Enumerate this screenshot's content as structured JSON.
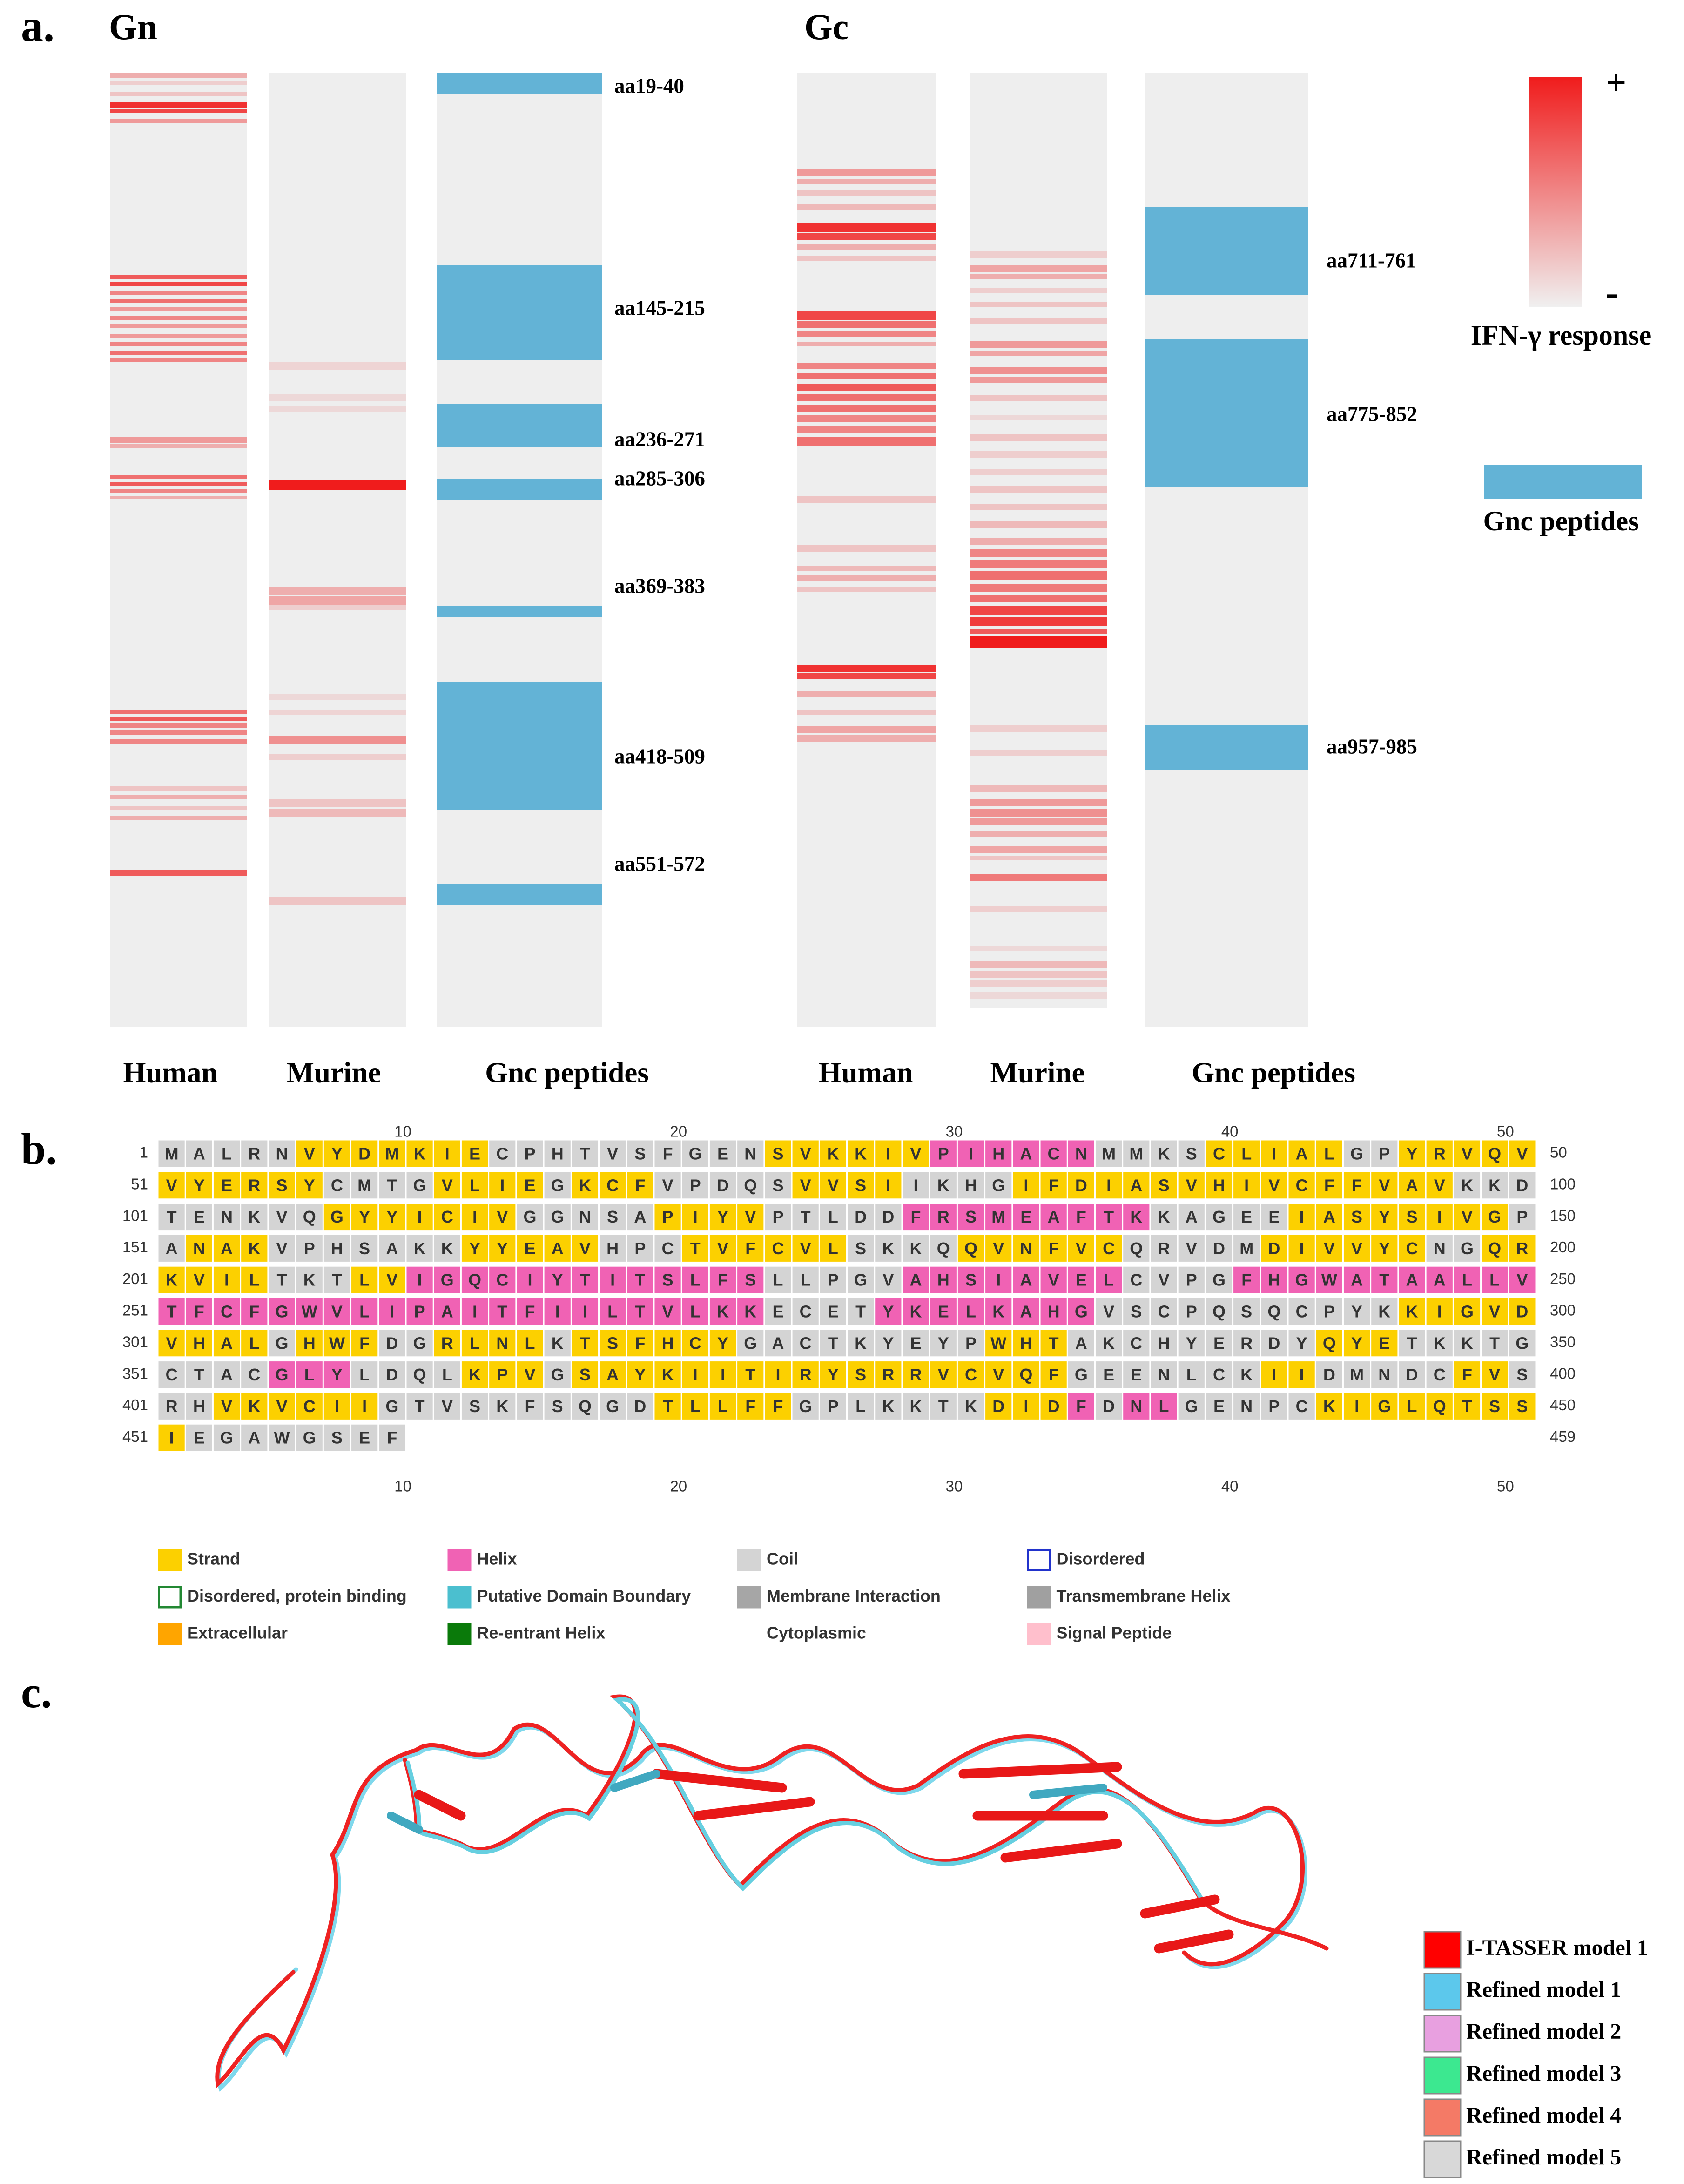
{
  "panel_a": {
    "label": "a.",
    "gn": {
      "title": "Gn",
      "columns": [
        "Human",
        "Murine",
        "Gnc peptides"
      ],
      "peptides": [
        "aa19-40",
        "aa145-215",
        "aa236-271",
        "aa285-306",
        "aa369-383",
        "aa418-509",
        "aa551-572"
      ]
    },
    "gc": {
      "title": "Gc",
      "columns": [
        "Human",
        "Murine",
        "Gnc peptides"
      ],
      "peptides": [
        "aa711-761",
        "aa775-852",
        "aa957-985"
      ]
    },
    "legend": {
      "plus": "+",
      "minus": "-",
      "response": "IFN-γ response",
      "peptides": "Gnc peptides"
    }
  },
  "panel_b": {
    "label": "b.",
    "ruler": [
      10,
      20,
      30,
      40,
      50
    ],
    "rows": [
      {
        "start": 1,
        "end": 50,
        "residues": "MALRNVYDMKIECPHTVSFGENSVKKIVPIHACNMMKSCLIALGPYRVQV",
        "structure": "CCCCCSSSSSSSCCCCCCCCCCSSSSSSHHHHHHCCCCSSSSSCCSSSSS"
      },
      {
        "start": 51,
        "end": 100,
        "residues": "VYERSYCMTGVLIEGKCFVPDQSVVSIIKHGIFDIASVHIVCFFVAVKKD",
        "structure": "SSSSSSCCCCSSSSCSSSCCCCCSSSSCCCCSSSSSSSSSSSSSSSSCCC"
      },
      {
        "start": 101,
        "end": 150,
        "residues": "TENKVQGYYICIVGGNSAPIYVPTLDDFRSMEAFTKKAGEEIASYSIVGP",
        "structure": "CCCCCCSSSSSSSCCCCCSSSSCCCCCHHHHHHHHHCCCCCSSSSSSSSC"
      },
      {
        "start": 151,
        "end": 200,
        "residues": "ANAKVPHSAKKYYEAVHPCTVFCVLSKKQQVNFVCQRVDMDIVVYCNGQR",
        "structure": "CSSSCCCCCCCSSSSSCCCSSSSSSCCCCSSSSSSCCCCCSSSSSSCCSS"
      },
      {
        "start": 201,
        "end": 250,
        "residues": "KVILTKTLVIGQCIYTITSLFSLLPGVAHSIAVELCVPGFHGWATAALLV",
        "structure": "SSSSCCCSSHHHHHHHHHHHHHCCCCCHHHHHHHHCCCCHHHHHHHHHHH"
      },
      {
        "start": 251,
        "end": 300,
        "residues": "TFCFGWVLIPAITFIILTVLKKECETYKELKAHGVSCPQSQCPYKKIGVD",
        "structure": "HHHHHHHHHHHHHHHHHHHHHHCCCCHHHHHHHHCCCCCCCCCCCSSSSS"
      },
      {
        "start": 301,
        "end": 350,
        "residues": "VHALGHWFDGRLNLKTSFHCYGACTKYEYPWHTAKCHYERDYQYETKKTG",
        "structure": "SSSSCSSSCCSSSSCSSSSSSCCCCCCCCCSSSCCCCCCCCCSSSCCCCC"
      },
      {
        "start": 351,
        "end": 400,
        "residues": "CTACGLYLDQLKPVGSAYKIITIRYSRRVCVQFGEENLCKIIDMNDCFVS",
        "structure": "CCCCHHHCCCCSSSCSSSSSSSSSSSSSSSSSSCCCCCCCSSCCCCCSSC"
      },
      {
        "start": 401,
        "end": 450,
        "residues": "RHVKVCIIGTVSKFSQGDTLLFFGPLKKTKDIDFDNLGENPCKIGLQTSS",
        "structure": "CCSSSSSSCCCCCCCCCCSSSSSCCCCCCCSSSHCHHCCCCCSSSSSSSS"
      },
      {
        "start": 451,
        "end": 459,
        "residues": "IEGAWGSEF",
        "structure": "SCCCCCCCC"
      }
    ],
    "legend": [
      {
        "label": "Strand",
        "color": "#fcd000",
        "style": "fill"
      },
      {
        "label": "Helix",
        "color": "#f062b4",
        "style": "fill"
      },
      {
        "label": "Coil",
        "color": "#d4d4d4",
        "style": "fill"
      },
      {
        "label": "Disordered",
        "color": "#2233cc",
        "style": "outline"
      },
      {
        "label": "Disordered, protein binding",
        "color": "#228833",
        "style": "outline"
      },
      {
        "label": "Putative Domain Boundary",
        "color": "#4bbfcf",
        "style": "fill"
      },
      {
        "label": "Membrane Interaction",
        "color": "#a6a6a6",
        "style": "fill"
      },
      {
        "label": "Transmembrane Helix",
        "color": "#a0a0a0",
        "style": "fill"
      },
      {
        "label": "Extracellular",
        "color": "#ffa500",
        "style": "fill"
      },
      {
        "label": "Re-entrant Helix",
        "color": "#0a7a0a",
        "style": "fill"
      },
      {
        "label": "Cytoplasmic",
        "color": "#ffffff",
        "style": "none"
      },
      {
        "label": "Signal Peptide",
        "color": "#ffbfcc",
        "style": "fill"
      }
    ]
  },
  "panel_c": {
    "label": "c.",
    "legend": [
      {
        "label": "I-TASSER model 1",
        "color": "#ff0000"
      },
      {
        "label": "Refined model 1",
        "color": "#5cc8ec"
      },
      {
        "label": "Refined model 2",
        "color": "#e8a0e0"
      },
      {
        "label": "Refined model 3",
        "color": "#3ce890"
      },
      {
        "label": "Refined model 4",
        "color": "#f47a66"
      },
      {
        "label": "Refined model 5",
        "color": "#d8d8d8"
      }
    ]
  }
}
